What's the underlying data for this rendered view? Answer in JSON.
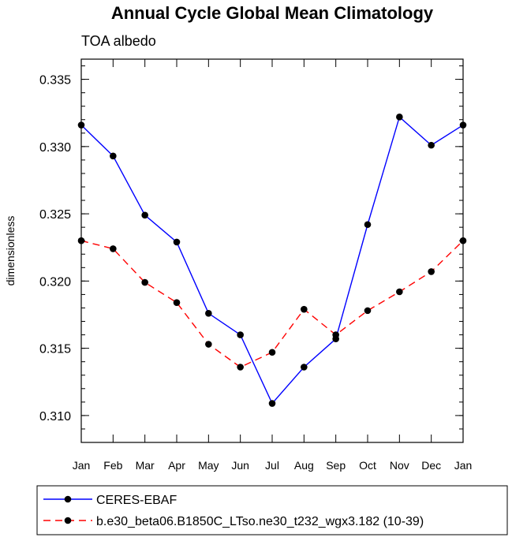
{
  "chart_data": {
    "type": "line",
    "title": "Annual Cycle Global Mean Climatology",
    "subtitle": "TOA albedo",
    "ylabel": "dimensionless",
    "xlabel": "",
    "categories": [
      "Jan",
      "Feb",
      "Mar",
      "Apr",
      "May",
      "Jun",
      "Jul",
      "Aug",
      "Sep",
      "Oct",
      "Nov",
      "Dec",
      "Jan"
    ],
    "ylim": [
      0.308,
      0.3365
    ],
    "yticks": [
      0.31,
      0.315,
      0.32,
      0.325,
      0.33,
      0.335
    ],
    "ytick_labels": [
      "0.310",
      "0.315",
      "0.320",
      "0.325",
      "0.330",
      "0.335"
    ],
    "yminor_step": 0.001,
    "grid": false,
    "legend_position": "bottom",
    "series": [
      {
        "name": "CERES-EBAF",
        "color": "#0000ff",
        "dash": "solid",
        "values": [
          0.3316,
          0.3293,
          0.3249,
          0.3229,
          0.3176,
          0.316,
          0.3109,
          0.3136,
          0.3157,
          0.3242,
          0.3322,
          0.3301,
          0.3316
        ]
      },
      {
        "name": "b.e30_beta06.B1850C_LTso.ne30_t232_wgx3.182 (10-39)",
        "color": "#ff0000",
        "dash": "dashed",
        "values": [
          0.323,
          0.3224,
          0.3199,
          0.3184,
          0.3153,
          0.3136,
          0.3147,
          0.3179,
          0.316,
          0.3178,
          0.3192,
          0.3207,
          0.323
        ]
      }
    ]
  }
}
